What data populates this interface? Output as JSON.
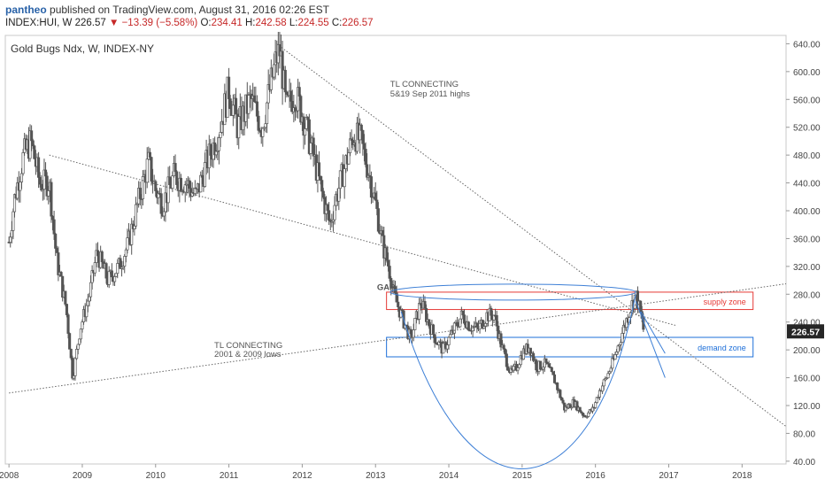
{
  "header": {
    "author": "pantheo",
    "published_text": "published on TradingView.com, August 31, 2016 02:26 EST",
    "symbol": "INDEX:HUI, W",
    "last": "226.57",
    "change": "−13.39 (−5.58%)",
    "o_label": "O:",
    "o_value": "234.41",
    "h_label": "H:",
    "h_value": "242.58",
    "l_label": "L:",
    "l_value": "224.55",
    "c_label": "C:",
    "c_value": "226.57",
    "down_arrow": "▼"
  },
  "chart_data": {
    "type": "candlestick",
    "title": "Gold Bugs Ndx, W, INDEX-NY",
    "y_ticks": [
      "640.00",
      "600.00",
      "560.00",
      "520.00",
      "480.00",
      "440.00",
      "400.00",
      "360.00",
      "320.00",
      "280.00",
      "240.00",
      "200.00",
      "160.00",
      "120.00",
      "80.00",
      "40.00"
    ],
    "x_ticks": [
      "2008",
      "2009",
      "2010",
      "2011",
      "2012",
      "2013",
      "2014",
      "2015",
      "2016",
      "2017",
      "2018"
    ],
    "ylim": [
      40,
      660
    ],
    "xlim": [
      2008.0,
      2018.6
    ],
    "last_price_label": "226.57",
    "anchors": [
      [
        2008.0,
        355
      ],
      [
        2008.08,
        420
      ],
      [
        2008.2,
        480
      ],
      [
        2008.3,
        500
      ],
      [
        2008.42,
        440
      ],
      [
        2008.55,
        440
      ],
      [
        2008.65,
        330
      ],
      [
        2008.78,
        260
      ],
      [
        2008.87,
        160
      ],
      [
        2008.97,
        230
      ],
      [
        2009.1,
        280
      ],
      [
        2009.2,
        340
      ],
      [
        2009.35,
        300
      ],
      [
        2009.5,
        320
      ],
      [
        2009.62,
        350
      ],
      [
        2009.78,
        420
      ],
      [
        2009.9,
        470
      ],
      [
        2010.0,
        430
      ],
      [
        2010.1,
        410
      ],
      [
        2010.25,
        450
      ],
      [
        2010.42,
        440
      ],
      [
        2010.55,
        420
      ],
      [
        2010.7,
        470
      ],
      [
        2010.85,
        510
      ],
      [
        2011.0,
        575
      ],
      [
        2011.12,
        520
      ],
      [
        2011.3,
        560
      ],
      [
        2011.45,
        520
      ],
      [
        2011.55,
        570
      ],
      [
        2011.65,
        620
      ],
      [
        2011.7,
        630
      ],
      [
        2011.78,
        545
      ],
      [
        2011.9,
        570
      ],
      [
        2012.0,
        540
      ],
      [
        2012.15,
        480
      ],
      [
        2012.28,
        420
      ],
      [
        2012.38,
        380
      ],
      [
        2012.45,
        415
      ],
      [
        2012.6,
        470
      ],
      [
        2012.7,
        510
      ],
      [
        2012.8,
        500
      ],
      [
        2012.92,
        450
      ],
      [
        2013.0,
        410
      ],
      [
        2013.1,
        350
      ],
      [
        2013.18,
        320
      ],
      [
        2013.25,
        280
      ],
      [
        2013.35,
        250
      ],
      [
        2013.48,
        215
      ],
      [
        2013.62,
        270
      ],
      [
        2013.72,
        240
      ],
      [
        2013.82,
        215
      ],
      [
        2013.92,
        200
      ],
      [
        2014.05,
        225
      ],
      [
        2014.18,
        250
      ],
      [
        2014.28,
        235
      ],
      [
        2014.4,
        230
      ],
      [
        2014.52,
        250
      ],
      [
        2014.62,
        250
      ],
      [
        2014.72,
        205
      ],
      [
        2014.85,
        165
      ],
      [
        2014.92,
        175
      ],
      [
        2015.0,
        195
      ],
      [
        2015.1,
        205
      ],
      [
        2015.2,
        175
      ],
      [
        2015.32,
        180
      ],
      [
        2015.45,
        155
      ],
      [
        2015.58,
        115
      ],
      [
        2015.7,
        125
      ],
      [
        2015.85,
        105
      ],
      [
        2015.97,
        115
      ],
      [
        2016.05,
        140
      ],
      [
        2016.15,
        160
      ],
      [
        2016.25,
        185
      ],
      [
        2016.38,
        230
      ],
      [
        2016.48,
        260
      ],
      [
        2016.55,
        280
      ],
      [
        2016.62,
        250
      ],
      [
        2016.66,
        226
      ]
    ],
    "trendlines": [
      {
        "p1": [
          2008.55,
          480
        ],
        "p2": [
          2017.1,
          235
        ],
        "label": ""
      },
      {
        "p1": [
          2011.65,
          640
        ],
        "p2": [
          2018.6,
          90
        ],
        "label": ""
      },
      {
        "p1": [
          2008.0,
          138
        ],
        "p2": [
          2018.6,
          295
        ],
        "label": ""
      }
    ],
    "rectangles": [
      {
        "x1": 2013.15,
        "x2": 2018.15,
        "y1": 283,
        "y2": 258,
        "color": "#e53935",
        "label": "supply zone"
      },
      {
        "x1": 2013.15,
        "x2": 2018.15,
        "y1": 218,
        "y2": 190,
        "color": "#1e6fd9",
        "label": "demand zone"
      }
    ],
    "annotations": [
      {
        "text": "TL CONNECTING",
        "x": 2013.2,
        "y": 578
      },
      {
        "text": "5&19 Sep 2011 highs",
        "x": 2013.2,
        "y": 564
      },
      {
        "text": "TL CONNECTING",
        "x": 2010.8,
        "y": 203
      },
      {
        "text": "2001 & 2009 lows",
        "x": 2010.8,
        "y": 190
      },
      {
        "text": "GAP",
        "x": 2013.02,
        "y": 286
      }
    ]
  }
}
